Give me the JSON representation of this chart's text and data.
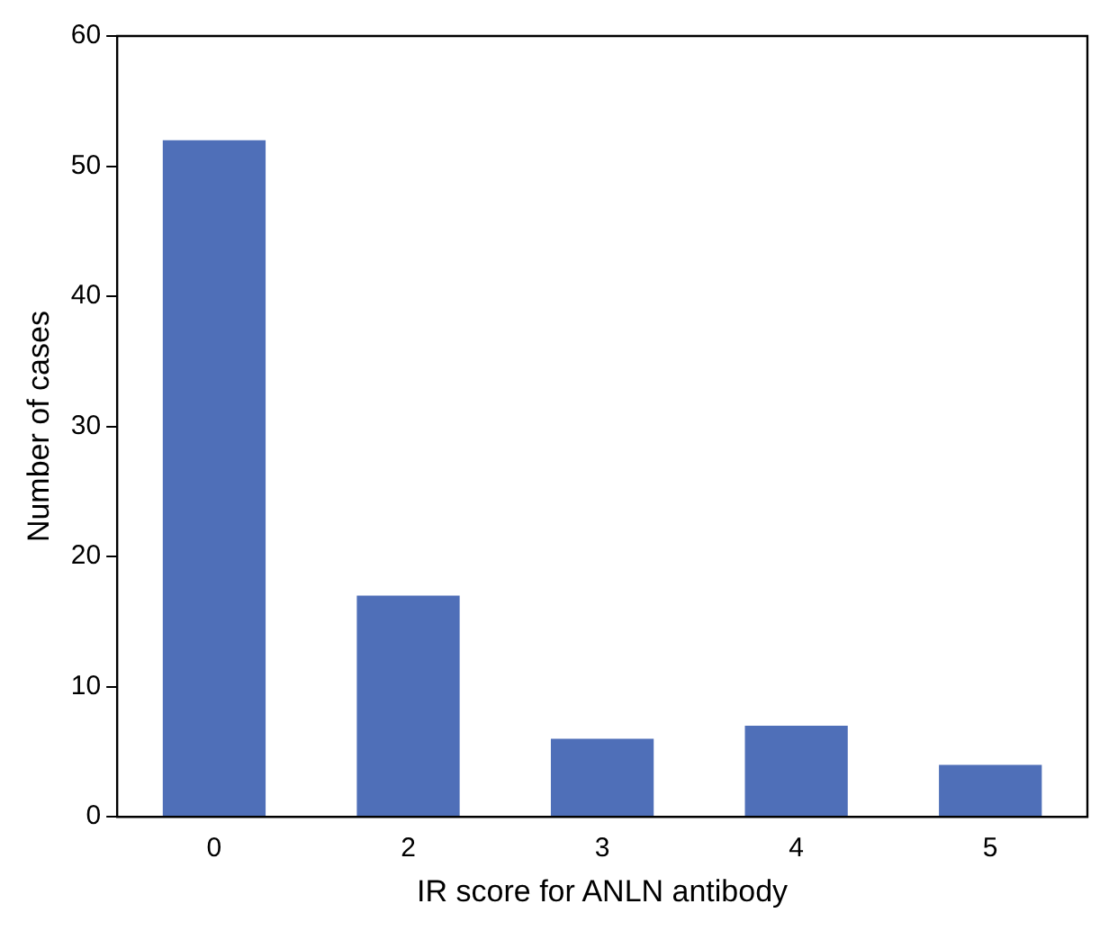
{
  "chart_data": {
    "type": "bar",
    "xlabel": "IR score for ANLN antibody",
    "ylabel": "Number of cases",
    "categories": [
      "0",
      "2",
      "3",
      "4",
      "5"
    ],
    "values": [
      52,
      17,
      6,
      7,
      4
    ],
    "color": "#4f6fb8",
    "ylim": [
      0,
      60
    ],
    "yticks": [
      0,
      10,
      20,
      30,
      40,
      50,
      60
    ],
    "grid": false,
    "legend": false
  }
}
